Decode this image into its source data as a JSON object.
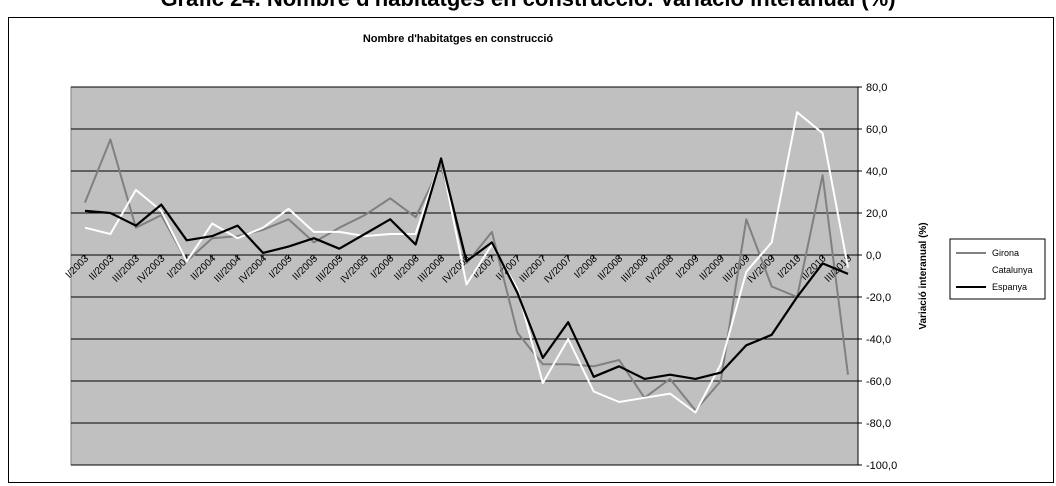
{
  "page_title": "Gràfic 24. Nombre d'habitatges en construcció. Variació interanual (%)",
  "chart_data": {
    "type": "line",
    "title": "Nombre d'habitatges en construcció",
    "ylabel": "Variació interanual (%)",
    "ylim": [
      -100,
      80
    ],
    "yticks": [
      "80,0",
      "60,0",
      "40,0",
      "20,0",
      "0,0",
      "-20,0",
      "-40,0",
      "-60,0",
      "-80,0",
      "-100,0"
    ],
    "grid": true,
    "legend_position": "right",
    "plot_background": "#c0c0c0",
    "categories": [
      "I/2003",
      "II/2003",
      "III/2003",
      "IV/2003",
      "I/2004",
      "II/2004",
      "III/2004",
      "IV/2004",
      "I/2005",
      "II/2005",
      "III/2005",
      "IV/2005",
      "I/2006",
      "II/2006",
      "III/2006",
      "IV/2006",
      "I/2007",
      "II/2007",
      "III/2007",
      "IV/2007",
      "I/2008",
      "II/2008",
      "III/2008",
      "IV/2008",
      "I/2009",
      "II/2009",
      "III/2009",
      "IV/2009",
      "I/2010",
      "II/2010",
      "III/2010"
    ],
    "x_tick_labels": [
      "I/2003",
      "II/2003",
      "III/2003",
      "IV/2003",
      "I/2004",
      "II/2004",
      "III/2004",
      "IV/2004",
      "I/2005",
      "II/2005",
      "III/2005",
      "IV/2005",
      "I/2006",
      "II/2006",
      "III/2006",
      "IV/2006",
      "I/2007",
      "II/2007",
      "III/2007",
      "IV/2007",
      "I/2008",
      "II/2008",
      "III/2008",
      "IV/2008",
      "I/2009",
      "II/2009",
      "III/2009",
      "IV/2009",
      "I/2010",
      "II/2010",
      "III/2010"
    ],
    "series": [
      {
        "name": "Girona",
        "color": "#808080",
        "values": [
          25,
          55,
          13,
          19,
          -3,
          8,
          9,
          12,
          17,
          6,
          13,
          19,
          27,
          18,
          43,
          -4,
          11,
          -37,
          -52,
          -52,
          -53,
          -50,
          -68,
          -59,
          -74,
          -60,
          17,
          -15,
          -20,
          38,
          -57
        ]
      },
      {
        "name": "Catalunya",
        "color": "#ffffff",
        "values": [
          13,
          10,
          31,
          21,
          -3,
          15,
          8,
          13,
          22,
          11,
          11,
          9,
          10,
          10,
          46,
          -14,
          5,
          -16,
          -61,
          -40,
          -65,
          -70,
          -68,
          -66,
          -75,
          -52,
          -8,
          6,
          68,
          58,
          -6
        ]
      },
      {
        "name": "Espanya",
        "color": "#000000",
        "values": [
          21,
          20,
          14,
          24,
          7,
          9,
          14,
          1,
          4,
          8,
          3,
          10,
          17,
          5,
          46,
          -3,
          6,
          -18,
          -49,
          -32,
          -58,
          -53,
          -59,
          -57,
          -59,
          -56,
          -43,
          -38,
          -20,
          -4,
          -9
        ]
      }
    ]
  }
}
